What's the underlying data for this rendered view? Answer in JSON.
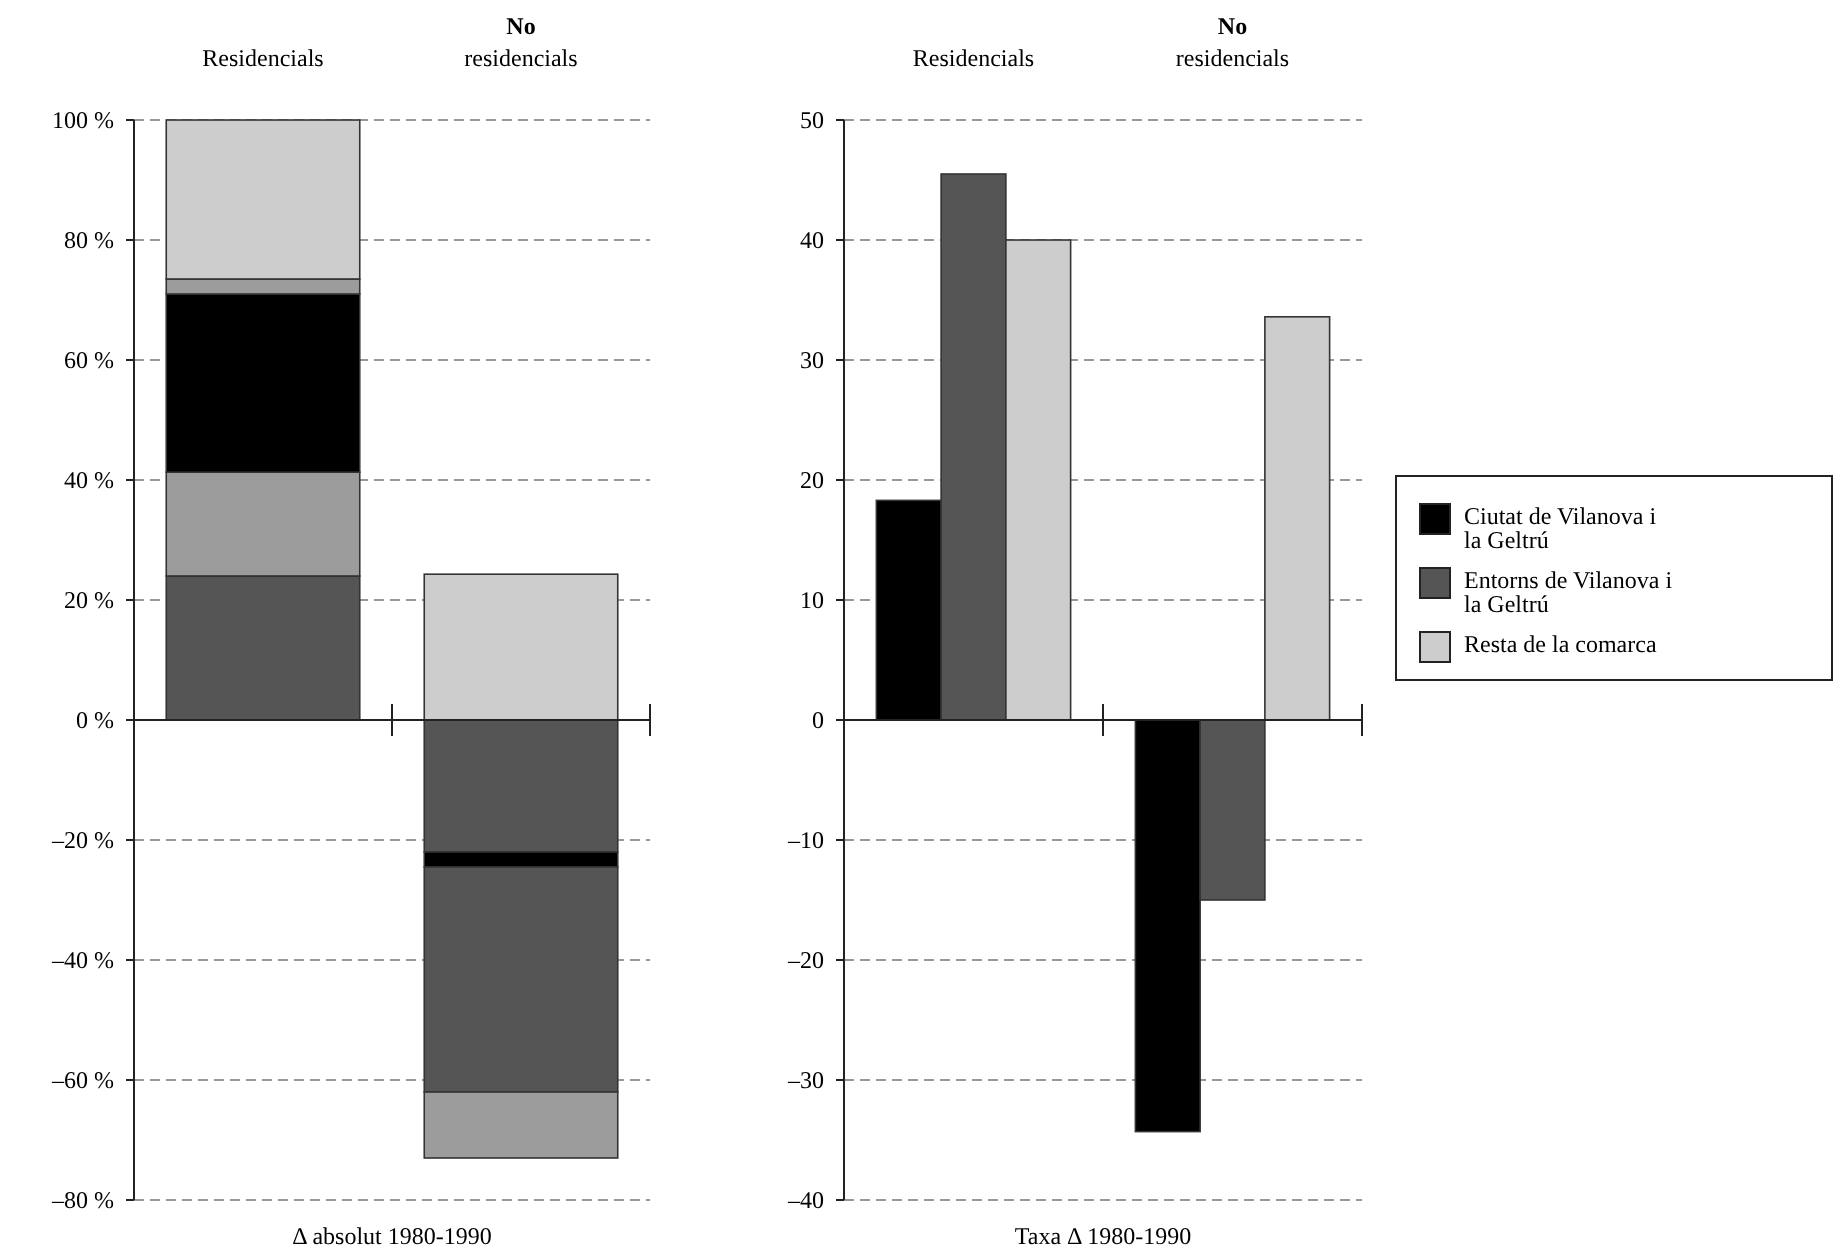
{
  "chart_data": [
    {
      "type": "bar",
      "stacked": true,
      "categories": [
        "Residencials",
        "No residencials"
      ],
      "xlabel": "Δ absolut 1980-1990",
      "ylim": [
        -80,
        100
      ],
      "yticks": [
        {
          "value": 100,
          "label": "100 %"
        },
        {
          "value": 80,
          "label": "80 %"
        },
        {
          "value": 60,
          "label": "60 %"
        },
        {
          "value": 40,
          "label": "40 %"
        },
        {
          "value": 20,
          "label": "20 %"
        },
        {
          "value": 0,
          "label": "0 %"
        },
        {
          "value": -20,
          "label": "–20 %"
        },
        {
          "value": -40,
          "label": "–40 %"
        },
        {
          "value": -60,
          "label": "–60 %"
        },
        {
          "value": -80,
          "label": "–80 %"
        }
      ],
      "grid": "y",
      "series": [
        {
          "color": "#555555",
          "values": [
            24,
            -22
          ]
        },
        {
          "color": "#9c9c9c",
          "values": [
            17.3,
            null
          ]
        },
        {
          "color": "#000000",
          "values": [
            29.7,
            -2.5
          ]
        },
        {
          "color": "#555555",
          "values": [
            null,
            -37.5
          ]
        },
        {
          "color": "#9c9c9c",
          "values": [
            2.5,
            -11
          ]
        },
        {
          "color": "#cdcdcd",
          "values": [
            26.5,
            24.3
          ]
        }
      ]
    },
    {
      "type": "bar",
      "categories": [
        "Residencials",
        "No residencials"
      ],
      "xlabel": "Taxa Δ 1980-1990",
      "ylim": [
        -40,
        50
      ],
      "yticks": [
        50,
        40,
        30,
        20,
        10,
        0,
        {
          "value": -10,
          "label": "–10"
        },
        {
          "value": -20,
          "label": "–20"
        },
        {
          "value": -30,
          "label": "–30"
        },
        {
          "value": -40,
          "label": "–40"
        }
      ],
      "grid": "y",
      "legend": "right",
      "series": [
        {
          "name": "Ciutat de Vilanova i la Geltrú",
          "color": "#000000",
          "values": [
            18.3,
            -34.3
          ]
        },
        {
          "name": "Entorns de Vilanova i la Geltrú",
          "color": "#555555",
          "values": [
            45.5,
            -15
          ]
        },
        {
          "name": "Resta de la comarca",
          "color": "#cdcdcd",
          "values": [
            40,
            33.6
          ]
        }
      ]
    }
  ]
}
